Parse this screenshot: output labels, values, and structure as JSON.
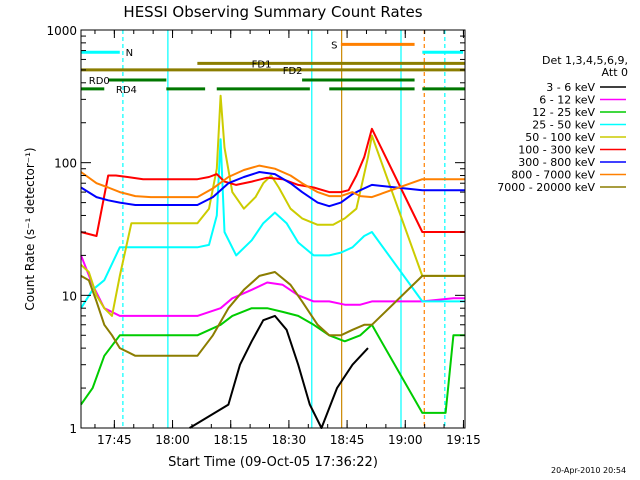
{
  "chart_data": {
    "type": "line",
    "title": "HESSI Observing Summary Count Rates",
    "xlabel": "Start Time (09-Oct-05 17:36:22)",
    "ylabel": "Count Rate (s⁻¹ detector⁻¹)",
    "yscale": "log",
    "ylim": [
      1,
      1000
    ],
    "xlim_min": [
      0,
      99
    ],
    "x_unit": "minutes after 17:36:22",
    "x_ticks": [
      {
        "label": "17:45",
        "min": 8.6
      },
      {
        "label": "18:00",
        "min": 23.6
      },
      {
        "label": "18:15",
        "min": 38.6
      },
      {
        "label": "18:30",
        "min": 53.6
      },
      {
        "label": "18:45",
        "min": 68.6
      },
      {
        "label": "19:00",
        "min": 83.6
      },
      {
        "label": "19:15",
        "min": 98.6
      }
    ],
    "y_ticks": [
      {
        "label": "1",
        "v": 1
      },
      {
        "label": "10",
        "v": 10
      },
      {
        "label": "100",
        "v": 100
      },
      {
        "label": "1000",
        "v": 1000
      }
    ],
    "legend_header": [
      "Det 1,3,4,5,6,9,",
      "Att 0"
    ],
    "legend_placement": "right",
    "series": [
      {
        "name": "3 - 6 keV",
        "color": "#000000",
        "points": [
          [
            28,
            1
          ],
          [
            38,
            1.5
          ],
          [
            41,
            3
          ],
          [
            44,
            4.5
          ],
          [
            47,
            6.5
          ],
          [
            50,
            7
          ],
          [
            53,
            5.5
          ],
          [
            56,
            3
          ],
          [
            59,
            1.5
          ],
          [
            62,
            1
          ],
          [
            66,
            2
          ],
          [
            70,
            3
          ],
          [
            74,
            4
          ]
        ]
      },
      {
        "name": "6 - 12 keV",
        "color": "#ff00ff",
        "points": [
          [
            0,
            20
          ],
          [
            3,
            12
          ],
          [
            6,
            8
          ],
          [
            10,
            7
          ],
          [
            16,
            7
          ],
          [
            22,
            7
          ],
          [
            27,
            7
          ],
          [
            30,
            7
          ],
          [
            36,
            8
          ],
          [
            39,
            9.5
          ],
          [
            44,
            11
          ],
          [
            48,
            12.5
          ],
          [
            52,
            12
          ],
          [
            56,
            10
          ],
          [
            60,
            9
          ],
          [
            64,
            9
          ],
          [
            68,
            8.5
          ],
          [
            72,
            8.5
          ],
          [
            75,
            9
          ],
          [
            88,
            9
          ],
          [
            96,
            9.5
          ],
          [
            99,
            9.5
          ]
        ]
      },
      {
        "name": "12 - 25 keV",
        "color": "#00cc00",
        "points": [
          [
            0,
            1.5
          ],
          [
            3,
            2
          ],
          [
            6,
            3.5
          ],
          [
            10,
            5
          ],
          [
            16,
            5
          ],
          [
            22,
            5
          ],
          [
            27,
            5
          ],
          [
            30,
            5
          ],
          [
            36,
            6
          ],
          [
            39,
            7
          ],
          [
            44,
            8
          ],
          [
            48,
            8
          ],
          [
            52,
            7.5
          ],
          [
            56,
            7
          ],
          [
            60,
            6
          ],
          [
            64,
            5
          ],
          [
            68,
            4.5
          ],
          [
            72,
            5
          ],
          [
            75,
            6
          ],
          [
            88,
            1.3
          ],
          [
            94,
            1.3
          ],
          [
            96,
            5
          ],
          [
            99,
            5
          ]
        ]
      },
      {
        "name": "25 - 50 keV",
        "color": "#00ffff",
        "points": [
          [
            0,
            8
          ],
          [
            3,
            11
          ],
          [
            6,
            13
          ],
          [
            10,
            23
          ],
          [
            16,
            23
          ],
          [
            22,
            23
          ],
          [
            27,
            23
          ],
          [
            30,
            23
          ],
          [
            33,
            24
          ],
          [
            35,
            40
          ],
          [
            36,
            150
          ],
          [
            37,
            30
          ],
          [
            40,
            20
          ],
          [
            44,
            26
          ],
          [
            47,
            35
          ],
          [
            50,
            42
          ],
          [
            53,
            35
          ],
          [
            56,
            25
          ],
          [
            60,
            20
          ],
          [
            64,
            20
          ],
          [
            67,
            21
          ],
          [
            70,
            23
          ],
          [
            73,
            28
          ],
          [
            75,
            30
          ],
          [
            88,
            9
          ],
          [
            96,
            9
          ],
          [
            99,
            9
          ]
        ]
      },
      {
        "name": "50 - 100 keV",
        "color": "#cccc00",
        "points": [
          [
            0,
            17
          ],
          [
            2,
            15
          ],
          [
            4,
            10
          ],
          [
            6,
            8
          ],
          [
            8,
            7
          ],
          [
            10,
            14
          ],
          [
            13,
            35
          ],
          [
            16,
            35
          ],
          [
            22,
            35
          ],
          [
            27,
            35
          ],
          [
            30,
            35
          ],
          [
            33,
            45
          ],
          [
            35,
            90
          ],
          [
            36,
            320
          ],
          [
            37,
            130
          ],
          [
            39,
            60
          ],
          [
            42,
            45
          ],
          [
            45,
            55
          ],
          [
            47,
            70
          ],
          [
            49,
            80
          ],
          [
            51,
            65
          ],
          [
            54,
            45
          ],
          [
            57,
            38
          ],
          [
            61,
            34
          ],
          [
            65,
            34
          ],
          [
            68,
            38
          ],
          [
            71,
            45
          ],
          [
            74,
            110
          ],
          [
            75,
            160
          ],
          [
            88,
            14
          ],
          [
            96,
            14
          ],
          [
            99,
            14
          ]
        ]
      },
      {
        "name": "100 - 300 keV",
        "color": "#ff0000",
        "points": [
          [
            0,
            30
          ],
          [
            4,
            28
          ],
          [
            7,
            80
          ],
          [
            9,
            80
          ],
          [
            12,
            78
          ],
          [
            16,
            75
          ],
          [
            22,
            75
          ],
          [
            27,
            75
          ],
          [
            30,
            75
          ],
          [
            33,
            78
          ],
          [
            35,
            82
          ],
          [
            37,
            72
          ],
          [
            40,
            68
          ],
          [
            44,
            72
          ],
          [
            48,
            77
          ],
          [
            52,
            75
          ],
          [
            56,
            68
          ],
          [
            60,
            65
          ],
          [
            64,
            60
          ],
          [
            67,
            60
          ],
          [
            69,
            62
          ],
          [
            71,
            80
          ],
          [
            73,
            110
          ],
          [
            75,
            180
          ],
          [
            88,
            30
          ],
          [
            96,
            30
          ],
          [
            99,
            30
          ]
        ]
      },
      {
        "name": "300 - 800 keV",
        "color": "#0000ff",
        "points": [
          [
            0,
            65
          ],
          [
            4,
            55
          ],
          [
            7,
            52
          ],
          [
            10,
            50
          ],
          [
            14,
            48
          ],
          [
            18,
            48
          ],
          [
            24,
            48
          ],
          [
            30,
            48
          ],
          [
            34,
            55
          ],
          [
            38,
            70
          ],
          [
            42,
            78
          ],
          [
            46,
            85
          ],
          [
            50,
            82
          ],
          [
            54,
            70
          ],
          [
            57,
            60
          ],
          [
            61,
            50
          ],
          [
            64,
            47
          ],
          [
            67,
            50
          ],
          [
            70,
            58
          ],
          [
            72,
            62
          ],
          [
            75,
            68
          ],
          [
            88,
            62
          ],
          [
            96,
            62
          ],
          [
            99,
            62
          ]
        ]
      },
      {
        "name": "800 - 7000 keV",
        "color": "#ff8000",
        "points": [
          [
            0,
            85
          ],
          [
            4,
            70
          ],
          [
            7,
            65
          ],
          [
            10,
            60
          ],
          [
            14,
            56
          ],
          [
            18,
            55
          ],
          [
            24,
            55
          ],
          [
            30,
            55
          ],
          [
            34,
            64
          ],
          [
            38,
            78
          ],
          [
            42,
            88
          ],
          [
            46,
            95
          ],
          [
            50,
            90
          ],
          [
            54,
            80
          ],
          [
            57,
            70
          ],
          [
            61,
            60
          ],
          [
            64,
            56
          ],
          [
            67,
            56
          ],
          [
            70,
            60
          ],
          [
            72,
            56
          ],
          [
            75,
            55
          ],
          [
            88,
            75
          ],
          [
            96,
            75
          ],
          [
            99,
            75
          ]
        ]
      },
      {
        "name": "7000 - 20000 keV",
        "color": "#8b7d00",
        "points": [
          [
            0,
            14
          ],
          [
            2,
            13
          ],
          [
            4,
            9
          ],
          [
            6,
            6
          ],
          [
            8,
            5
          ],
          [
            10,
            4
          ],
          [
            14,
            3.5
          ],
          [
            18,
            3.5
          ],
          [
            24,
            3.5
          ],
          [
            30,
            3.5
          ],
          [
            34,
            5
          ],
          [
            38,
            8
          ],
          [
            42,
            11
          ],
          [
            46,
            14
          ],
          [
            50,
            15
          ],
          [
            54,
            12
          ],
          [
            57,
            9
          ],
          [
            61,
            6
          ],
          [
            64,
            5
          ],
          [
            67,
            5
          ],
          [
            70,
            5.5
          ],
          [
            73,
            6
          ],
          [
            75,
            6
          ],
          [
            88,
            14
          ],
          [
            96,
            14
          ],
          [
            99,
            14
          ]
        ]
      }
    ],
    "flags": [
      {
        "label": "N",
        "color": "#00ffff",
        "v": 680,
        "segments": [
          [
            0,
            10
          ],
          [
            88,
            98.5
          ]
        ],
        "label_min": 11.5
      },
      {
        "label": "S",
        "color": "#ff8000",
        "v": 780,
        "segments": [
          [
            67,
            86
          ]
        ],
        "label_min": 64.5
      },
      {
        "label": "FD1",
        "color": "#8b7d00",
        "v": 560,
        "segments": [
          [
            30,
            99
          ]
        ],
        "label_min": 44
      },
      {
        "label": "FD2",
        "color": "#8b7d00",
        "v": 500,
        "segments": [
          [
            0,
            99
          ]
        ],
        "label_min": 52
      },
      {
        "label": "RD0",
        "color": "#007700",
        "v": 420,
        "segments": [
          [
            7,
            22
          ],
          [
            57,
            86
          ]
        ],
        "label_min": 2
      },
      {
        "label": "RD4",
        "color": "#007700",
        "v": 360,
        "segments": [
          [
            0,
            6
          ],
          [
            22,
            32
          ],
          [
            35,
            59
          ],
          [
            64,
            86
          ],
          [
            88,
            99
          ]
        ],
        "label_min": 9
      }
    ],
    "vlines": [
      {
        "min": 10.8,
        "color": "#00ffff",
        "dashed": true
      },
      {
        "min": 22.4,
        "color": "#00ffff",
        "dashed": false
      },
      {
        "min": 59.5,
        "color": "#00ffff",
        "dashed": false
      },
      {
        "min": 67.2,
        "color": "#cc8800",
        "dashed": false
      },
      {
        "min": 82.5,
        "color": "#00ffff",
        "dashed": false
      },
      {
        "min": 88.5,
        "color": "#ff8000",
        "dashed": true
      },
      {
        "min": 93.8,
        "color": "#00ffff",
        "dashed": true
      }
    ]
  },
  "footer": {
    "timestamp": "20-Apr-2010 20:54"
  }
}
